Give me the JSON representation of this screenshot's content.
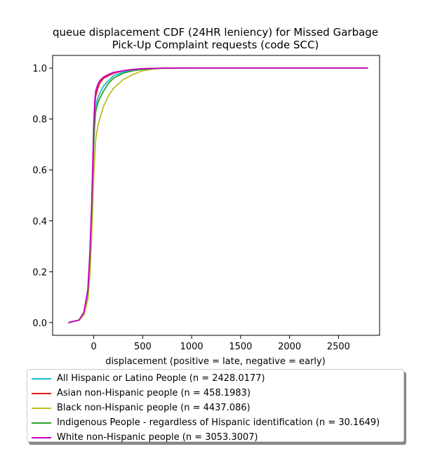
{
  "chart_data": {
    "type": "line",
    "title": "queue displacement CDF (24HR leniency) for Missed Garbage\nPick-Up Complaint  requests (code SCC)",
    "xlabel": "displacement (positive = late, negative = early)",
    "ylabel": "",
    "xlim": [
      -420,
      2920
    ],
    "ylim": [
      -0.05,
      1.05
    ],
    "xticks": [
      0,
      500,
      1000,
      1500,
      2000,
      2500
    ],
    "yticks": [
      0.0,
      0.2,
      0.4,
      0.6,
      0.8,
      1.0
    ],
    "grid": false,
    "legend_placement": "below",
    "series": [
      {
        "name": "All Hispanic or Latino People (n = 2428.0177)",
        "color": "#17becf",
        "x": [
          -260,
          -150,
          -100,
          -60,
          -40,
          -20,
          0,
          10,
          20,
          40,
          60,
          100,
          150,
          200,
          300,
          400,
          500,
          600,
          700,
          1000,
          2800
        ],
        "y": [
          0.0,
          0.01,
          0.04,
          0.12,
          0.25,
          0.45,
          0.72,
          0.8,
          0.85,
          0.88,
          0.9,
          0.93,
          0.95,
          0.97,
          0.985,
          0.993,
          0.997,
          0.999,
          1.0,
          1.0,
          1.0
        ]
      },
      {
        "name": "Asian non-Hispanic people (n = 458.1983)",
        "color": "#e41a1c",
        "x": [
          -260,
          -150,
          -100,
          -60,
          -40,
          -20,
          0,
          10,
          20,
          40,
          60,
          100,
          150,
          200,
          300,
          400,
          500,
          600,
          700,
          1000,
          2800
        ],
        "y": [
          0.0,
          0.01,
          0.04,
          0.12,
          0.25,
          0.45,
          0.75,
          0.85,
          0.89,
          0.92,
          0.94,
          0.96,
          0.97,
          0.98,
          0.99,
          0.995,
          0.998,
          0.999,
          1.0,
          1.0,
          1.0
        ]
      },
      {
        "name": "Black non-Hispanic people (n = 4437.086)",
        "color": "#bcbd22",
        "x": [
          -260,
          -150,
          -100,
          -60,
          -40,
          -20,
          0,
          20,
          40,
          60,
          100,
          150,
          200,
          300,
          400,
          500,
          600,
          700,
          1000,
          2800
        ],
        "y": [
          0.0,
          0.01,
          0.03,
          0.09,
          0.18,
          0.35,
          0.58,
          0.72,
          0.77,
          0.8,
          0.85,
          0.89,
          0.92,
          0.955,
          0.975,
          0.99,
          0.996,
          0.999,
          1.0,
          1.0
        ]
      },
      {
        "name": "Indigenous People - regardless of Hispanic identification (n = 30.1649)",
        "color": "#2ca02c",
        "x": [
          -260,
          -150,
          -100,
          -60,
          -40,
          -20,
          0,
          10,
          20,
          40,
          60,
          100,
          150,
          200,
          300,
          400,
          500,
          600,
          700,
          1000,
          2800
        ],
        "y": [
          0.0,
          0.01,
          0.04,
          0.12,
          0.25,
          0.45,
          0.7,
          0.78,
          0.83,
          0.86,
          0.88,
          0.91,
          0.94,
          0.96,
          0.98,
          0.99,
          0.995,
          0.998,
          1.0,
          1.0,
          1.0
        ]
      },
      {
        "name": "White non-Hispanic people (n = 3053.3007)",
        "color": "#c800c8",
        "x": [
          -260,
          -150,
          -100,
          -60,
          -40,
          -20,
          0,
          10,
          20,
          40,
          60,
          100,
          150,
          200,
          300,
          400,
          500,
          600,
          700,
          1000,
          2800
        ],
        "y": [
          0.0,
          0.01,
          0.04,
          0.13,
          0.27,
          0.48,
          0.78,
          0.87,
          0.91,
          0.935,
          0.95,
          0.965,
          0.975,
          0.983,
          0.99,
          0.995,
          0.998,
          0.999,
          1.0,
          1.0,
          1.0
        ]
      }
    ]
  }
}
